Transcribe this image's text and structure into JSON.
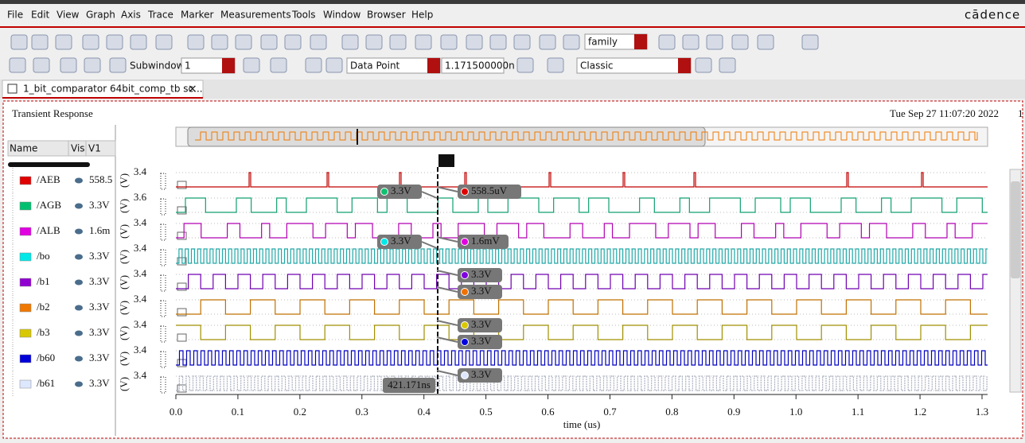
{
  "menu": [
    "File",
    "Edit",
    "View",
    "Graph",
    "Axis",
    "Trace",
    "Marker",
    "Measurements",
    "Tools",
    "Window",
    "Browser",
    "Help"
  ],
  "brand": "cādence",
  "toolbar": {
    "family": "family",
    "subwindow_label": "Subwindow:",
    "subwindow": "1",
    "marker_mode": "Data Point",
    "marker_value": "1.171500000n",
    "style": "Classic"
  },
  "tab": "1_bit_comparator 64bit_comp_tb sc...",
  "panel": {
    "title": "Transient Response",
    "timestamp": "Tue Sep 27 11:07:20 2022",
    "timestamp_tail": "1"
  },
  "signal_list": {
    "columns": [
      "Name",
      "Vis",
      "V1"
    ],
    "rows": [
      {
        "name": "/AEB",
        "color": "#e00000",
        "value": "558.5"
      },
      {
        "name": "/AGB",
        "color": "#00c070",
        "value": "3.3V"
      },
      {
        "name": "/ALB",
        "color": "#e000e0",
        "value": "1.6m"
      },
      {
        "name": "/bo",
        "color": "#00e8e8",
        "value": "3.3V"
      },
      {
        "name": "/b1",
        "color": "#9000d0",
        "value": "3.3V"
      },
      {
        "name": "/b2",
        "color": "#f07800",
        "value": "3.3V"
      },
      {
        "name": "/b3",
        "color": "#d8c800",
        "value": "3.3V"
      },
      {
        "name": "/b60",
        "color": "#0000d8",
        "value": "3.3V"
      },
      {
        "name": "/b61",
        "color": "#dde8ff",
        "value": "3.3V"
      }
    ]
  },
  "plot": {
    "y_top_labels": [
      "3.4",
      "3.6",
      "3.4",
      "3.4",
      "3.4",
      "3.4",
      "3.4",
      "3.4",
      "3.4"
    ],
    "y_unit": "(V)",
    "x_ticks": [
      "0.0",
      "0.1",
      "0.2",
      "0.3",
      "0.4",
      "0.5",
      "0.6",
      "0.7",
      "0.8",
      "0.9",
      "1.0",
      "1.1",
      "1.2",
      "1.3"
    ],
    "x_label": "time (us)",
    "marker": {
      "name": "V1",
      "time": "421.171ns",
      "readouts": [
        {
          "text": "3.3V",
          "color": "#10c070"
        },
        {
          "text": "558.5uV",
          "color": "#e00000"
        },
        {
          "text": "3.3V",
          "color": "#00e8e8"
        },
        {
          "text": "1.6mV",
          "color": "#e000e0"
        },
        {
          "text": "3.3V",
          "color": "#8000e0"
        },
        {
          "text": "3.3V",
          "color": "#f07000"
        },
        {
          "text": "3.3V",
          "color": "#d8c800"
        },
        {
          "text": "3.3V",
          "color": "#0000e0"
        },
        {
          "text": "3.3V",
          "color": "#dde8ff"
        }
      ]
    }
  }
}
